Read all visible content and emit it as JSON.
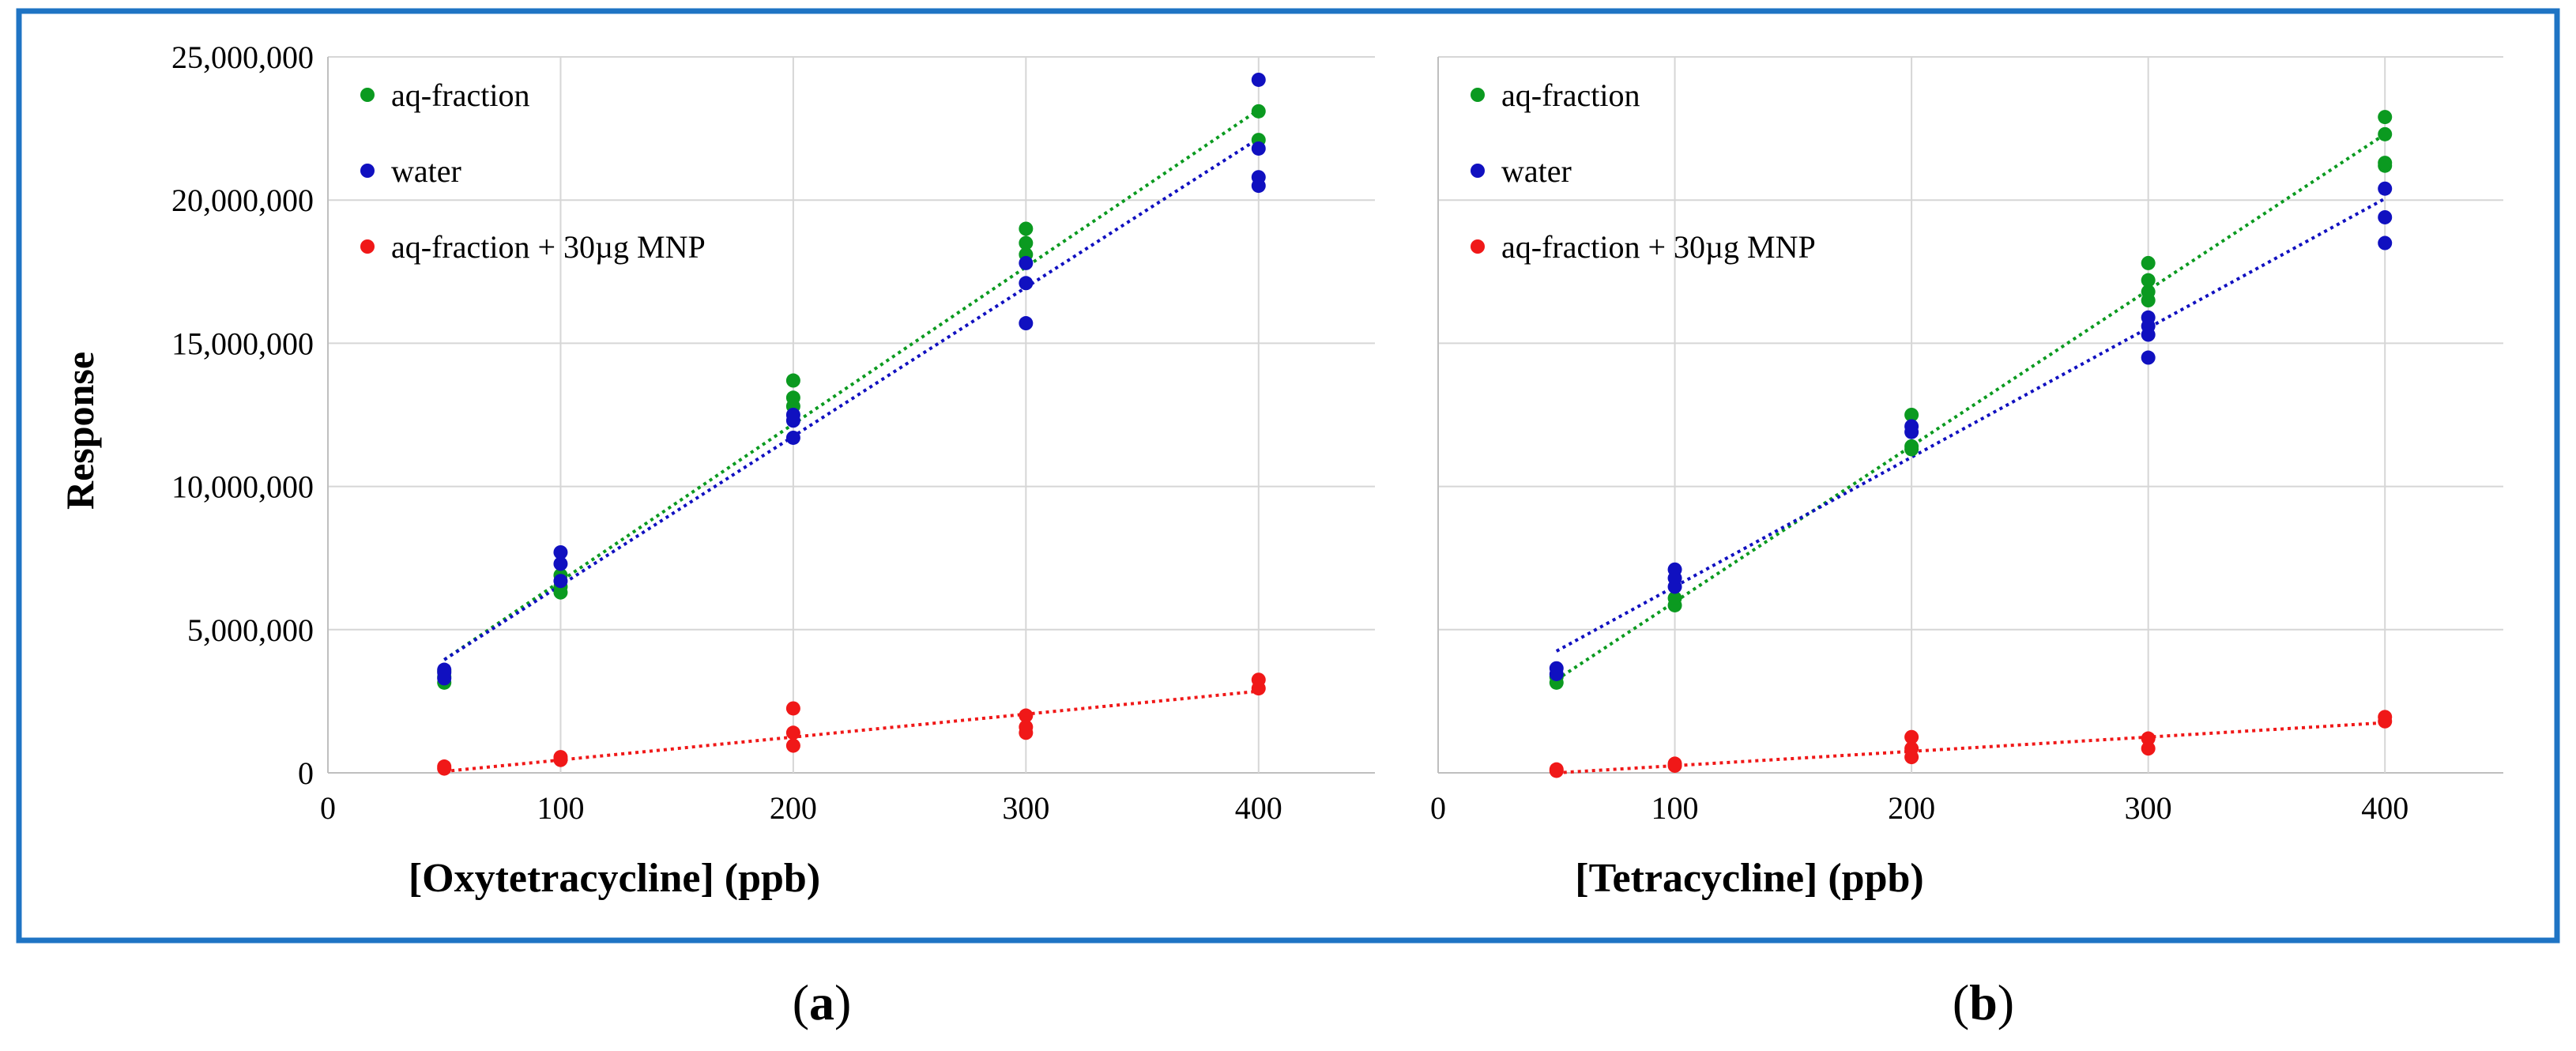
{
  "figure": {
    "border_color": "#1f74c4",
    "labels": [
      {
        "open": "(",
        "letter": "a",
        "close": ")"
      },
      {
        "open": "(",
        "letter": "b",
        "close": ")"
      }
    ]
  },
  "series_colors": {
    "aq-fraction": "#0b9a20",
    "water": "#1010c0",
    "aq-fraction + 30µg MNP": "#f01818"
  },
  "chart_data": [
    {
      "type": "scatter",
      "title": "",
      "xlabel": "[Oxytetracycline] (ppb)",
      "ylabel": "Response",
      "xlim": [
        0,
        450
      ],
      "ylim": [
        0,
        25000000
      ],
      "xticks": [
        "0",
        "100",
        "200",
        "300",
        "400"
      ],
      "yticks": [
        "0",
        "5,000,000",
        "10,000,000",
        "15,000,000",
        "20,000,000",
        "25,000,000"
      ],
      "grid": true,
      "legend_position": "top-left",
      "series": [
        {
          "name": "aq-fraction",
          "points": [
            [
              50,
              3150000
            ],
            [
              50,
              3350000
            ],
            [
              50,
              3550000
            ],
            [
              100,
              6300000
            ],
            [
              100,
              6500000
            ],
            [
              100,
              6900000
            ],
            [
              200,
              12800000
            ],
            [
              200,
              13100000
            ],
            [
              200,
              13700000
            ],
            [
              300,
              18100000
            ],
            [
              300,
              18500000
            ],
            [
              300,
              19000000
            ],
            [
              400,
              22100000
            ],
            [
              400,
              23100000
            ]
          ],
          "trendline": [
            [
              50,
              3950000
            ],
            [
              400,
              23150000
            ]
          ]
        },
        {
          "name": "water",
          "points": [
            [
              50,
              3300000
            ],
            [
              50,
              3500000
            ],
            [
              50,
              3600000
            ],
            [
              100,
              6700000
            ],
            [
              100,
              7300000
            ],
            [
              100,
              7700000
            ],
            [
              200,
              11700000
            ],
            [
              200,
              12300000
            ],
            [
              200,
              12500000
            ],
            [
              300,
              15700000
            ],
            [
              300,
              17100000
            ],
            [
              300,
              17800000
            ],
            [
              400,
              20500000
            ],
            [
              400,
              20800000
            ],
            [
              400,
              21800000
            ],
            [
              400,
              24200000
            ]
          ],
          "trendline": [
            [
              50,
              3950000
            ],
            [
              400,
              22150000
            ]
          ]
        },
        {
          "name": "aq-fraction + 30µg MNP",
          "points": [
            [
              50,
              150000
            ],
            [
              50,
              220000
            ],
            [
              100,
              450000
            ],
            [
              100,
              550000
            ],
            [
              200,
              950000
            ],
            [
              200,
              1400000
            ],
            [
              200,
              2250000
            ],
            [
              300,
              1400000
            ],
            [
              300,
              1600000
            ],
            [
              300,
              2000000
            ],
            [
              400,
              2950000
            ],
            [
              400,
              3250000
            ]
          ],
          "trendline": [
            [
              50,
              50000
            ],
            [
              400,
              2850000
            ]
          ]
        }
      ]
    },
    {
      "type": "scatter",
      "title": "",
      "xlabel": "[Tetracycline] (ppb)",
      "ylabel": "",
      "xlim": [
        0,
        450
      ],
      "ylim": [
        0,
        25000000
      ],
      "xticks": [
        "0",
        "100",
        "200",
        "300",
        "400"
      ],
      "yticks": [],
      "grid": true,
      "legend_position": "top-left",
      "series": [
        {
          "name": "aq-fraction",
          "points": [
            [
              50,
              3150000
            ],
            [
              50,
              3350000
            ],
            [
              100,
              5850000
            ],
            [
              100,
              6100000
            ],
            [
              200,
              11300000
            ],
            [
              200,
              11400000
            ],
            [
              200,
              12500000
            ],
            [
              300,
              16500000
            ],
            [
              300,
              16800000
            ],
            [
              300,
              17200000
            ],
            [
              300,
              17800000
            ],
            [
              400,
              21200000
            ],
            [
              400,
              21300000
            ],
            [
              400,
              22300000
            ],
            [
              400,
              22900000
            ]
          ],
          "trendline": [
            [
              50,
              3250000
            ],
            [
              400,
              22300000
            ]
          ]
        },
        {
          "name": "water",
          "points": [
            [
              50,
              3450000
            ],
            [
              50,
              3650000
            ],
            [
              100,
              6500000
            ],
            [
              100,
              6800000
            ],
            [
              100,
              7100000
            ],
            [
              200,
              11900000
            ],
            [
              200,
              12100000
            ],
            [
              300,
              14500000
            ],
            [
              300,
              15300000
            ],
            [
              300,
              15600000
            ],
            [
              300,
              15900000
            ],
            [
              400,
              18500000
            ],
            [
              400,
              19400000
            ],
            [
              400,
              20400000
            ]
          ],
          "trendline": [
            [
              50,
              4250000
            ],
            [
              400,
              20050000
            ]
          ]
        },
        {
          "name": "aq-fraction + 30µg MNP",
          "points": [
            [
              50,
              70000
            ],
            [
              50,
              120000
            ],
            [
              100,
              250000
            ],
            [
              100,
              320000
            ],
            [
              200,
              550000
            ],
            [
              200,
              850000
            ],
            [
              200,
              1250000
            ],
            [
              300,
              850000
            ],
            [
              300,
              1200000
            ],
            [
              400,
              1800000
            ],
            [
              400,
              1950000
            ]
          ],
          "trendline": [
            [
              50,
              0
            ],
            [
              400,
              1750000
            ]
          ]
        }
      ]
    }
  ]
}
